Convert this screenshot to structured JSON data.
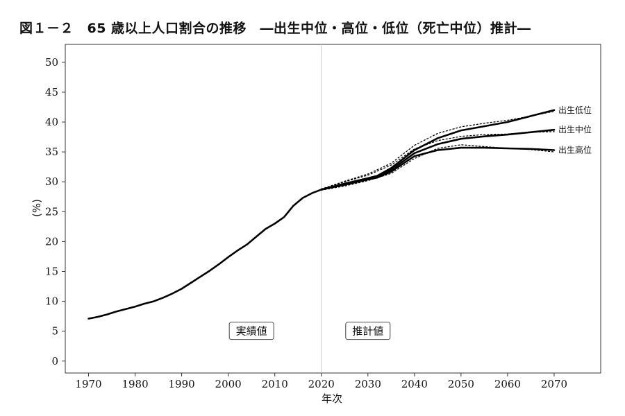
{
  "title": "図１－２　65 歳以上人口割合の推移　―出生中位・高位・低位（死亡中位）推計―",
  "chart_data": {
    "type": "line",
    "title": "図１－２　65 歳以上人口割合の推移　―出生中位・高位・低位（死亡中位）推計―",
    "xlabel": "年次",
    "ylabel": "(%)",
    "xlim": [
      1965,
      2080
    ],
    "ylim": [
      -2,
      53
    ],
    "xticks": [
      "1970",
      "1980",
      "1990",
      "2000",
      "2010",
      "2020",
      "2030",
      "2040",
      "2050",
      "2060",
      "2070"
    ],
    "yticks": [
      "0",
      "5",
      "10",
      "15",
      "20",
      "25",
      "30",
      "35",
      "40",
      "45",
      "50"
    ],
    "grid": false,
    "divider_year": 2020,
    "annotations": [
      {
        "text": "実績値",
        "x": 2005,
        "y": 5
      },
      {
        "text": "推計値",
        "x": 2030,
        "y": 5
      }
    ],
    "series": [
      {
        "name": "",
        "style": "solid",
        "x": [
          1970,
          1972,
          1974,
          1976,
          1978,
          1980,
          1982,
          1984,
          1986,
          1988,
          1990,
          1992,
          1994,
          1996,
          1998,
          2000,
          2002,
          2004,
          2006,
          2008,
          2010,
          2012,
          2014,
          2016,
          2018,
          2020
        ],
        "y": [
          7.1,
          7.4,
          7.8,
          8.3,
          8.7,
          9.1,
          9.6,
          10.0,
          10.6,
          11.3,
          12.1,
          13.1,
          14.1,
          15.1,
          16.2,
          17.4,
          18.5,
          19.5,
          20.8,
          22.1,
          23.0,
          24.1,
          26.0,
          27.3,
          28.1,
          28.7
        ]
      },
      {
        "name": "出生低位",
        "style": "solid",
        "x": [
          2020,
          2025,
          2030,
          2032,
          2035,
          2040,
          2045,
          2050,
          2055,
          2060,
          2065,
          2070
        ],
        "y": [
          28.7,
          29.7,
          30.6,
          31.0,
          32.3,
          35.3,
          37.3,
          38.6,
          39.3,
          40.0,
          41.0,
          42.0
        ]
      },
      {
        "name": "出生中位",
        "style": "solid",
        "x": [
          2020,
          2025,
          2030,
          2032,
          2035,
          2040,
          2045,
          2050,
          2055,
          2060,
          2065,
          2070
        ],
        "y": [
          28.7,
          29.6,
          30.5,
          30.9,
          32.0,
          34.8,
          36.3,
          37.2,
          37.6,
          37.9,
          38.3,
          38.7
        ]
      },
      {
        "name": "出生高位",
        "style": "solid",
        "x": [
          2020,
          2025,
          2030,
          2032,
          2035,
          2040,
          2045,
          2050,
          2055,
          2060,
          2065,
          2070
        ],
        "y": [
          28.7,
          29.5,
          30.4,
          30.7,
          31.7,
          34.3,
          35.3,
          35.7,
          35.7,
          35.6,
          35.5,
          35.3
        ]
      },
      {
        "name": "",
        "style": "dotted",
        "x": [
          2020,
          2025,
          2030,
          2035,
          2040,
          2045,
          2050,
          2055,
          2060,
          2065,
          2070
        ],
        "y": [
          28.8,
          30.1,
          31.3,
          33.1,
          36.1,
          38.1,
          39.2,
          39.8,
          40.3,
          41.0,
          41.8
        ]
      },
      {
        "name": "",
        "style": "dotted",
        "x": [
          2020,
          2025,
          2030,
          2035,
          2040,
          2045,
          2050,
          2055,
          2060,
          2065,
          2070
        ],
        "y": [
          28.8,
          30.0,
          31.1,
          32.8,
          35.5,
          36.9,
          37.6,
          37.9,
          38.0,
          38.3,
          38.4
        ]
      },
      {
        "name": "",
        "style": "dotted",
        "x": [
          2020,
          2025,
          2030,
          2035,
          2040,
          2045,
          2050,
          2055,
          2060,
          2065,
          2070
        ],
        "y": [
          28.6,
          29.3,
          30.2,
          31.4,
          33.9,
          35.6,
          36.2,
          35.9,
          35.6,
          35.4,
          35.0
        ]
      }
    ]
  }
}
